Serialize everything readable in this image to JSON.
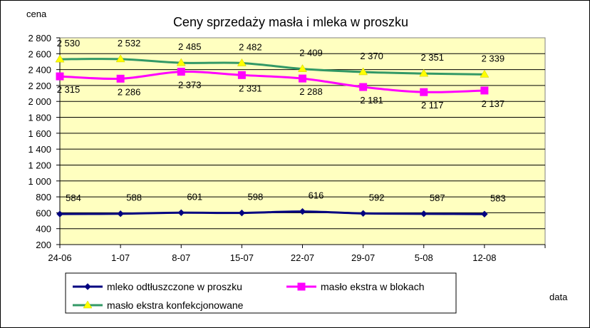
{
  "chart_data": {
    "type": "line",
    "title": "Ceny sprzedaży masła i mleka w proszku",
    "ylabel": "cena",
    "xlabel": "data",
    "categories": [
      "24-06",
      "1-07",
      "8-07",
      "15-07",
      "22-07",
      "29-07",
      "5-08",
      "12-08"
    ],
    "ylim": [
      200,
      2800
    ],
    "ytick_labels": [
      "200",
      "400",
      "600",
      "800",
      "1 000",
      "1 200",
      "1 400",
      "1 600",
      "1 800",
      "2 000",
      "2 200",
      "2 400",
      "2 600",
      "2 800"
    ],
    "grid": true,
    "legend_position": "bottom",
    "series": [
      {
        "name": "mleko odtłuszczone w proszku",
        "color": "#000080",
        "marker": "diamond",
        "values": [
          584,
          588,
          601,
          598,
          616,
          592,
          587,
          583
        ],
        "labels": [
          "584",
          "588",
          "601",
          "598",
          "616",
          "592",
          "587",
          "583"
        ]
      },
      {
        "name": "masło ekstra w blokach",
        "color": "#FF00FF",
        "marker": "square",
        "values": [
          2315,
          2286,
          2373,
          2331,
          2288,
          2181,
          2117,
          2137
        ],
        "labels": [
          "2 315",
          "2 286",
          "2 373",
          "2 331",
          "2 288",
          "2 181",
          "2 117",
          "2 137"
        ]
      },
      {
        "name": "masło ekstra konfekcjonowane",
        "color": "#339966",
        "marker": "triangle",
        "marker_color": "#FFFF00",
        "values": [
          2530,
          2532,
          2485,
          2482,
          2409,
          2370,
          2351,
          2339
        ],
        "labels": [
          "2 530",
          "2 532",
          "2 485",
          "2 482",
          "2 409",
          "2 370",
          "2 351",
          "2 339"
        ]
      }
    ],
    "plot_background": "#FFFFC0"
  }
}
